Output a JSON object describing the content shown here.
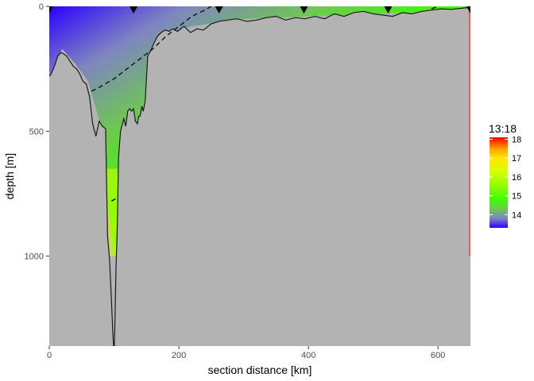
{
  "chart_data": {
    "type": "heatmap",
    "title": "",
    "xlabel": "section distance [km]",
    "ylabel": "depth [m]",
    "xlim": [
      0,
      650
    ],
    "ylim": [
      1360,
      0
    ],
    "x_reversed": false,
    "y_reversed": true,
    "x_ticks": [
      0,
      200,
      400,
      600
    ],
    "x_tick_labels": [
      "0",
      "200",
      "400",
      "600"
    ],
    "y_ticks": [
      0,
      500,
      1000
    ],
    "y_tick_labels": [
      "0",
      "500",
      "1000"
    ],
    "grid": false,
    "background_color": "#b3b3b3",
    "colorbar": {
      "title": "13:18",
      "range": [
        13.3,
        18.1
      ],
      "ticks": [
        14,
        15,
        16,
        17,
        18
      ],
      "tick_labels": [
        "14",
        "15",
        "16",
        "17",
        "18"
      ],
      "stops": [
        {
          "value": 13.3,
          "color": "#2a00ff"
        },
        {
          "value": 13.8,
          "color": "#7f85c0"
        },
        {
          "value": 14.3,
          "color": "#6ec850"
        },
        {
          "value": 14.8,
          "color": "#3cff00"
        },
        {
          "value": 15.5,
          "color": "#8fff00"
        },
        {
          "value": 16.3,
          "color": "#d8ff00"
        },
        {
          "value": 17.0,
          "color": "#ffe800"
        },
        {
          "value": 17.5,
          "color": "#ffa000"
        },
        {
          "value": 18.1,
          "color": "#ff0000"
        }
      ]
    },
    "station_markers_km": [
      0,
      130,
      262,
      393,
      523,
      650
    ],
    "bathymetry": {
      "x": [
        0,
        3,
        8,
        13,
        18,
        22,
        27,
        32,
        37,
        42,
        47,
        52,
        57,
        62,
        67,
        72,
        77,
        82,
        87,
        90,
        93,
        96,
        98,
        100,
        101,
        103,
        105,
        107,
        110,
        113,
        115,
        118,
        121,
        124,
        127,
        130,
        133,
        136,
        138,
        140,
        143,
        145,
        148,
        152,
        157,
        161,
        164,
        167,
        170,
        175,
        180,
        185,
        190,
        198,
        208,
        218,
        228,
        238,
        250,
        262,
        275,
        290,
        305,
        320,
        335,
        350,
        365,
        380,
        395,
        410,
        425,
        440,
        455,
        470,
        485,
        500,
        515,
        530,
        545,
        560,
        575,
        590,
        605,
        620,
        635,
        645,
        650
      ],
      "y": [
        280,
        270,
        240,
        200,
        185,
        190,
        200,
        220,
        240,
        250,
        270,
        300,
        310,
        360,
        470,
        520,
        460,
        480,
        490,
        920,
        1010,
        1180,
        1300,
        1395,
        1300,
        1050,
        880,
        600,
        500,
        470,
        450,
        480,
        420,
        410,
        420,
        410,
        460,
        470,
        440,
        440,
        400,
        420,
        380,
        200,
        175,
        150,
        135,
        120,
        112,
        100,
        95,
        100,
        90,
        100,
        80,
        105,
        90,
        95,
        70,
        60,
        55,
        50,
        60,
        55,
        45,
        40,
        55,
        45,
        50,
        40,
        50,
        30,
        40,
        25,
        20,
        30,
        35,
        40,
        25,
        30,
        20,
        15,
        10,
        12,
        8,
        5,
        5
      ]
    },
    "data_extent": {
      "x": [
        0,
        5,
        20,
        40,
        60,
        80,
        90,
        100,
        110,
        130,
        150,
        180,
        220,
        300,
        400,
        500,
        600,
        640,
        650
      ],
      "y": [
        1000,
        260,
        170,
        230,
        300,
        480,
        780,
        1000,
        1000,
        1000,
        420,
        110,
        80,
        50,
        40,
        30,
        20,
        1000,
        1000
      ]
    },
    "isoline": {
      "level": 14,
      "style": "dashed",
      "segments": [
        {
          "x": [
            65,
            80,
            100,
            120,
            140,
            160,
            180,
            200,
            220,
            240,
            250
          ],
          "y": [
            340,
            320,
            290,
            250,
            210,
            170,
            120,
            80,
            40,
            15,
            0
          ]
        },
        {
          "x": [
            96,
            102
          ],
          "y": [
            780,
            770
          ]
        },
        {
          "x": [
            590,
            600
          ],
          "y": [
            10,
            0
          ]
        }
      ]
    }
  }
}
